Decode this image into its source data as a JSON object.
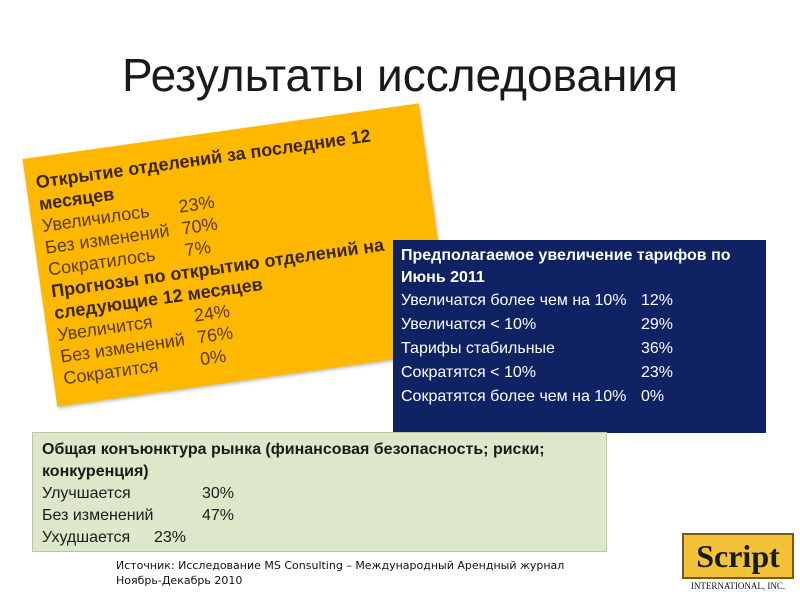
{
  "title": "Результаты исследования",
  "orange_box": {
    "heading1": "Открытие отделений за последние 12 месяцев",
    "rows1": [
      {
        "label": "Увеличилось",
        "value": "23%"
      },
      {
        "label": "Без изменений",
        "value": "70%"
      },
      {
        "label": "Сократилось",
        "value": "7%"
      }
    ],
    "heading2": "Прогнозы по открытию отделений на следующие 12 месяцев",
    "rows2": [
      {
        "label": "Увеличится",
        "value": "24%"
      },
      {
        "label": "Без изменений",
        "value": "76%"
      },
      {
        "label": "Сократится",
        "value": "0%"
      }
    ]
  },
  "navy_box": {
    "heading": "Предполагаемое увеличение тарифов по Июнь 2011",
    "rows": [
      {
        "label": "Увеличатся более чем на 10%",
        "value": "12%"
      },
      {
        "label": "Увеличатся < 10%",
        "value": "29%"
      },
      {
        "label": "Тарифы стабильные",
        "value": "36%"
      },
      {
        "label": "Сократятся < 10%",
        "value": "23%"
      },
      {
        "label": "Сократятся более чем на 10%",
        "value": "0%"
      }
    ]
  },
  "green_box": {
    "heading": "Общая конъюнктура рынка (финансовая безопасность; риски; конкуренция)",
    "rows": [
      {
        "label": "Улучшается",
        "value": "30%"
      },
      {
        "label": "Без изменений",
        "value": "47%"
      },
      {
        "label": "Ухудшается",
        "value": "23%"
      }
    ]
  },
  "source": {
    "line1": "Источник: Исследование MS Consulting – Международный Арендный журнал",
    "line2": "Ноябрь-Декабрь 2010"
  },
  "logo": {
    "name": "Script",
    "sub": "INTERNATIONAL, INC."
  }
}
